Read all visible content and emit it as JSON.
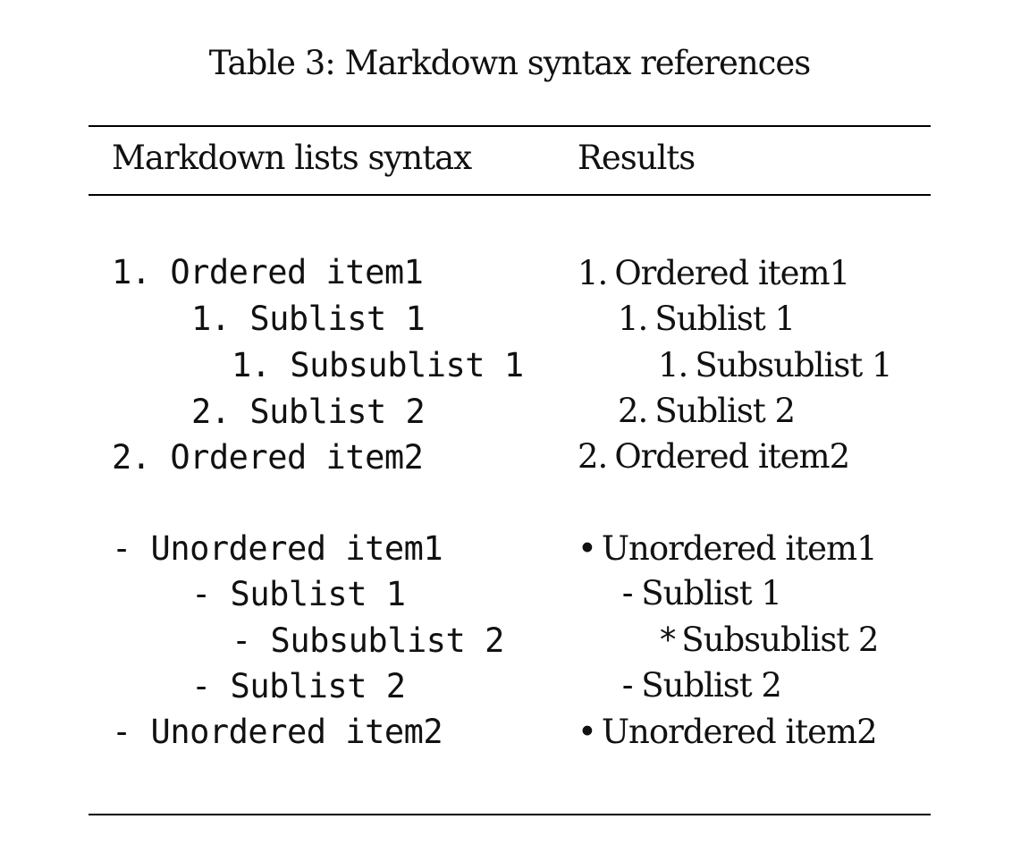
{
  "caption": "Table 3: Markdown syntax references",
  "headers": {
    "syntax": "Markdown lists syntax",
    "results": "Results"
  },
  "syntax_rows": [
    "1. Ordered item1",
    "1. Sublist 1",
    "1. Subsublist 1",
    "2. Sublist 2",
    "2. Ordered item2",
    "- Unordered item1",
    "- Sublist 1",
    "- Subsublist 2",
    "- Sublist 2",
    "- Unordered item2"
  ],
  "result_rows": [
    {
      "marker": "1.",
      "text": "Ordered item1"
    },
    {
      "marker": "1.",
      "text": "Sublist 1"
    },
    {
      "marker": "1.",
      "text": "Subsublist 1"
    },
    {
      "marker": "2.",
      "text": "Sublist 2"
    },
    {
      "marker": "2.",
      "text": "Ordered item2"
    },
    {
      "marker": "•",
      "text": "Unordered item1"
    },
    {
      "marker": "-",
      "text": "Sublist 1"
    },
    {
      "marker": "*",
      "text": "Subsublist 2"
    },
    {
      "marker": "-",
      "text": "Sublist 2"
    },
    {
      "marker": "•",
      "text": "Unordered item2"
    }
  ]
}
